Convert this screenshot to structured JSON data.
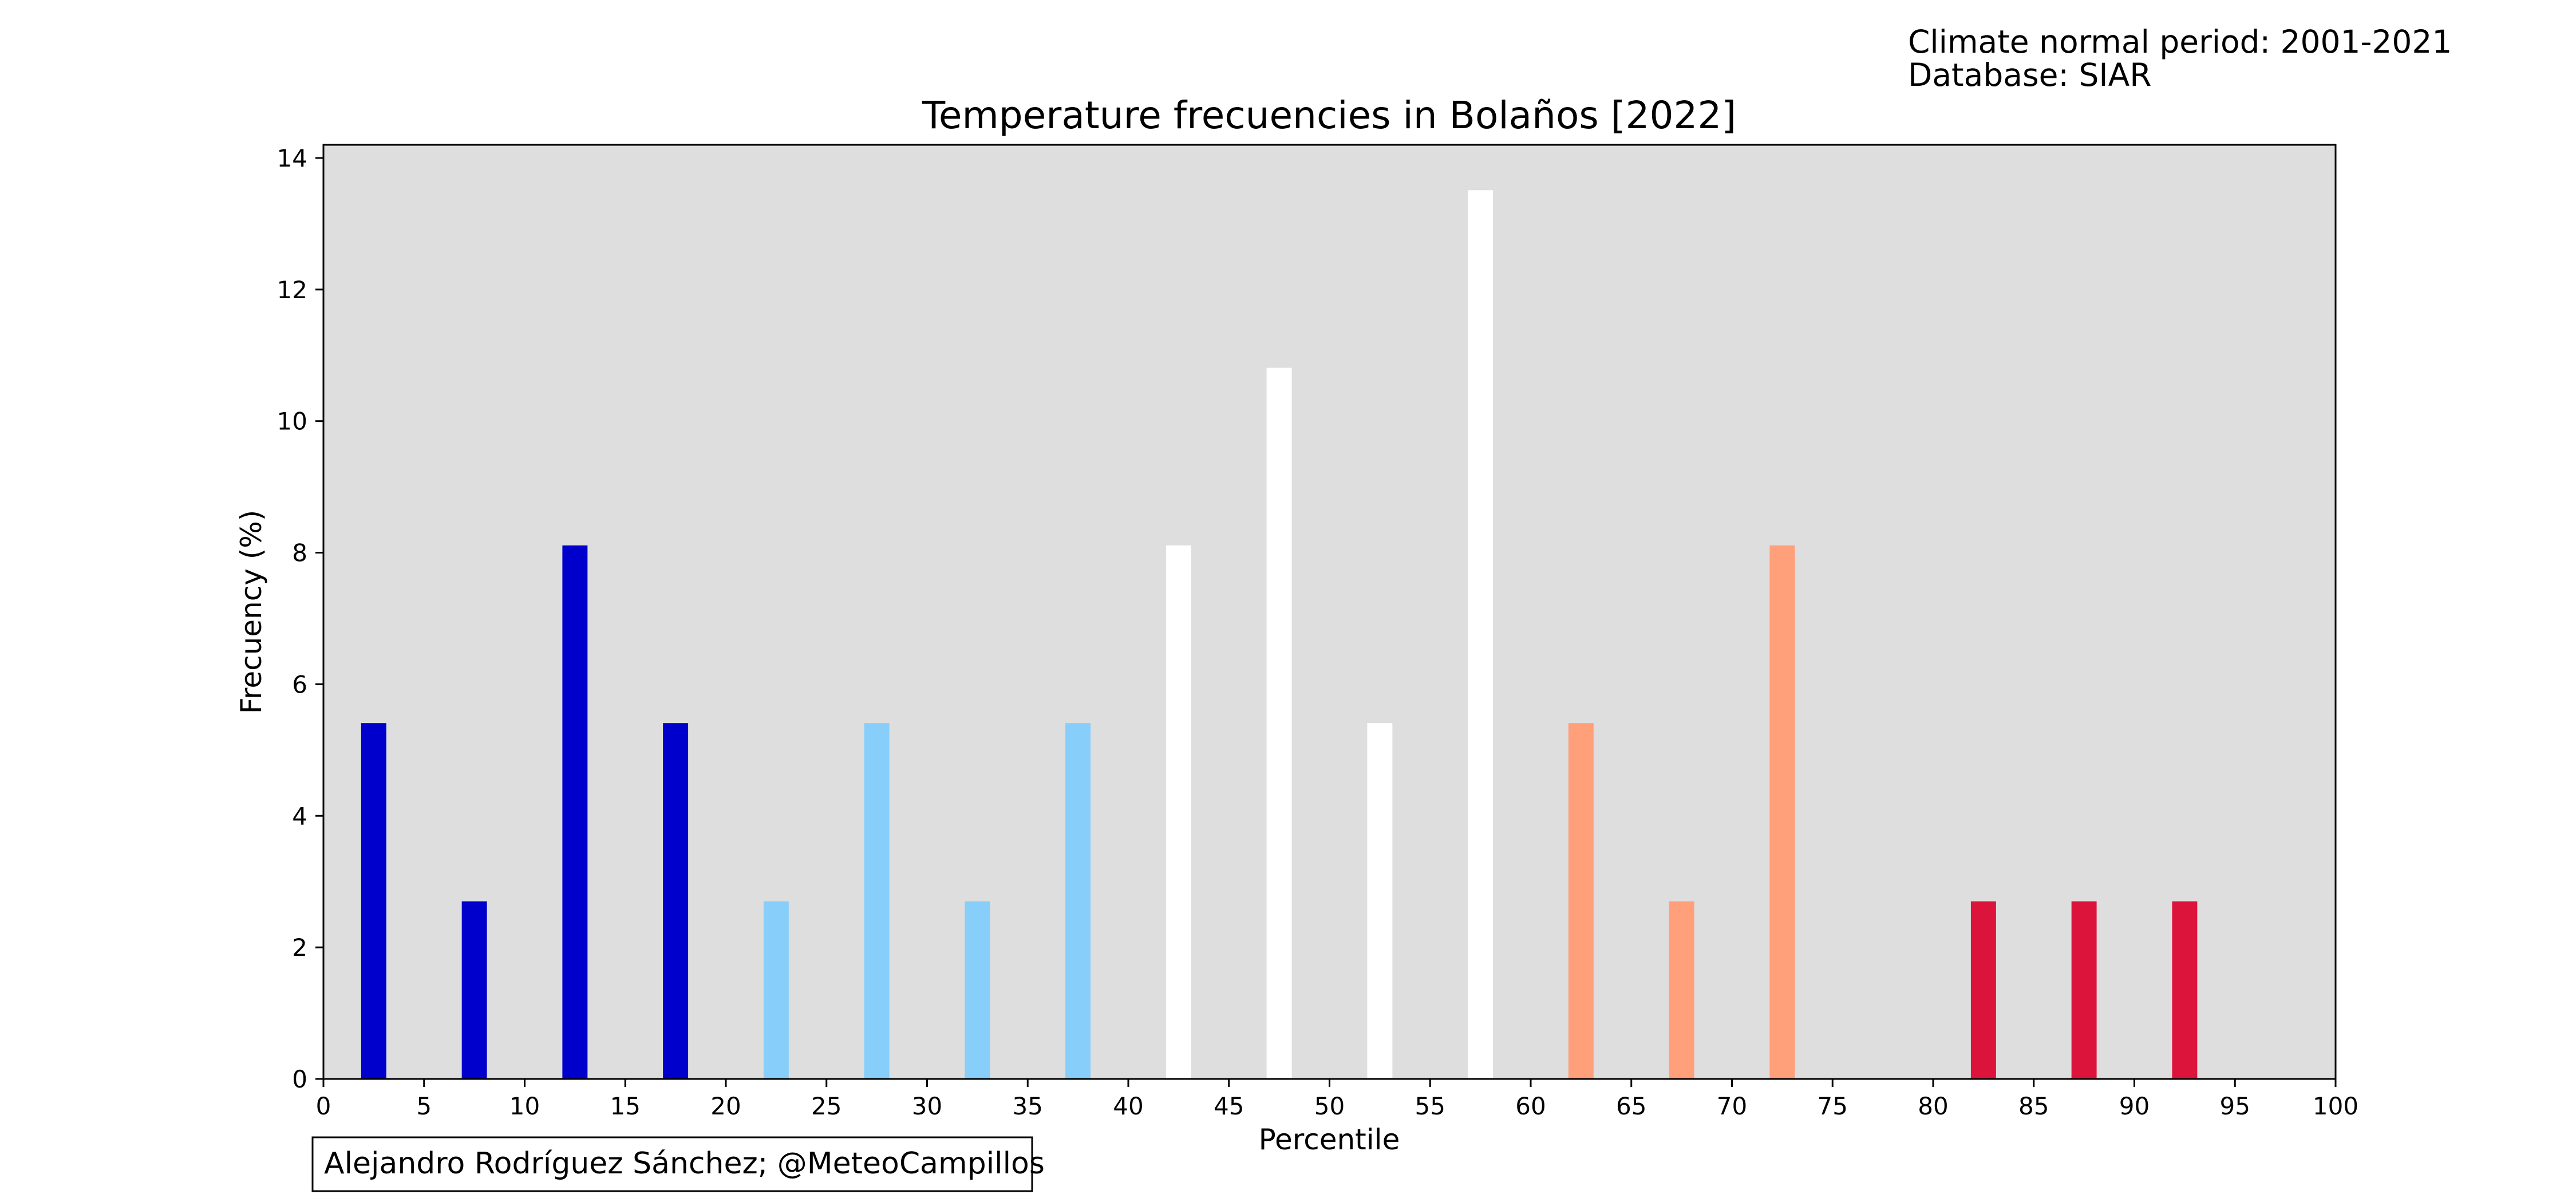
{
  "header": {
    "climate_period": "Climate normal period: 2001-2021",
    "database": "Database: SIAR"
  },
  "credit": "Alejandro Rodríguez Sánchez; @MeteoCampillos",
  "chart_data": {
    "type": "bar",
    "title": "Temperature frecuencies in Bolaños [2022]",
    "xlabel": "Percentile",
    "ylabel": "Frecuency (%)",
    "xlim": [
      0,
      100
    ],
    "ylim": [
      0,
      14.2
    ],
    "xticks": [
      0,
      5,
      10,
      15,
      20,
      25,
      30,
      35,
      40,
      45,
      50,
      55,
      60,
      65,
      70,
      75,
      80,
      85,
      90,
      95,
      100
    ],
    "yticks": [
      0,
      2,
      4,
      6,
      8,
      10,
      12,
      14
    ],
    "bar_width": 1.25,
    "background": "#dedede",
    "grid": false,
    "bars": [
      {
        "x": 2.5,
        "value": 5.41,
        "color": "#0000cd"
      },
      {
        "x": 7.5,
        "value": 2.7,
        "color": "#0000cd"
      },
      {
        "x": 12.5,
        "value": 8.11,
        "color": "#0000cd"
      },
      {
        "x": 17.5,
        "value": 5.41,
        "color": "#0000cd"
      },
      {
        "x": 22.5,
        "value": 2.7,
        "color": "#87cefa"
      },
      {
        "x": 27.5,
        "value": 5.41,
        "color": "#87cefa"
      },
      {
        "x": 32.5,
        "value": 2.7,
        "color": "#87cefa"
      },
      {
        "x": 37.5,
        "value": 5.41,
        "color": "#87cefa"
      },
      {
        "x": 42.5,
        "value": 8.11,
        "color": "#ffffff"
      },
      {
        "x": 47.5,
        "value": 10.81,
        "color": "#ffffff"
      },
      {
        "x": 52.5,
        "value": 5.41,
        "color": "#ffffff"
      },
      {
        "x": 57.5,
        "value": 13.51,
        "color": "#ffffff"
      },
      {
        "x": 62.5,
        "value": 5.41,
        "color": "#ffa07a"
      },
      {
        "x": 67.5,
        "value": 2.7,
        "color": "#ffa07a"
      },
      {
        "x": 72.5,
        "value": 8.11,
        "color": "#ffa07a"
      },
      {
        "x": 82.5,
        "value": 2.7,
        "color": "#dc143c"
      },
      {
        "x": 87.5,
        "value": 2.7,
        "color": "#dc143c"
      },
      {
        "x": 92.5,
        "value": 2.7,
        "color": "#dc143c"
      }
    ]
  }
}
